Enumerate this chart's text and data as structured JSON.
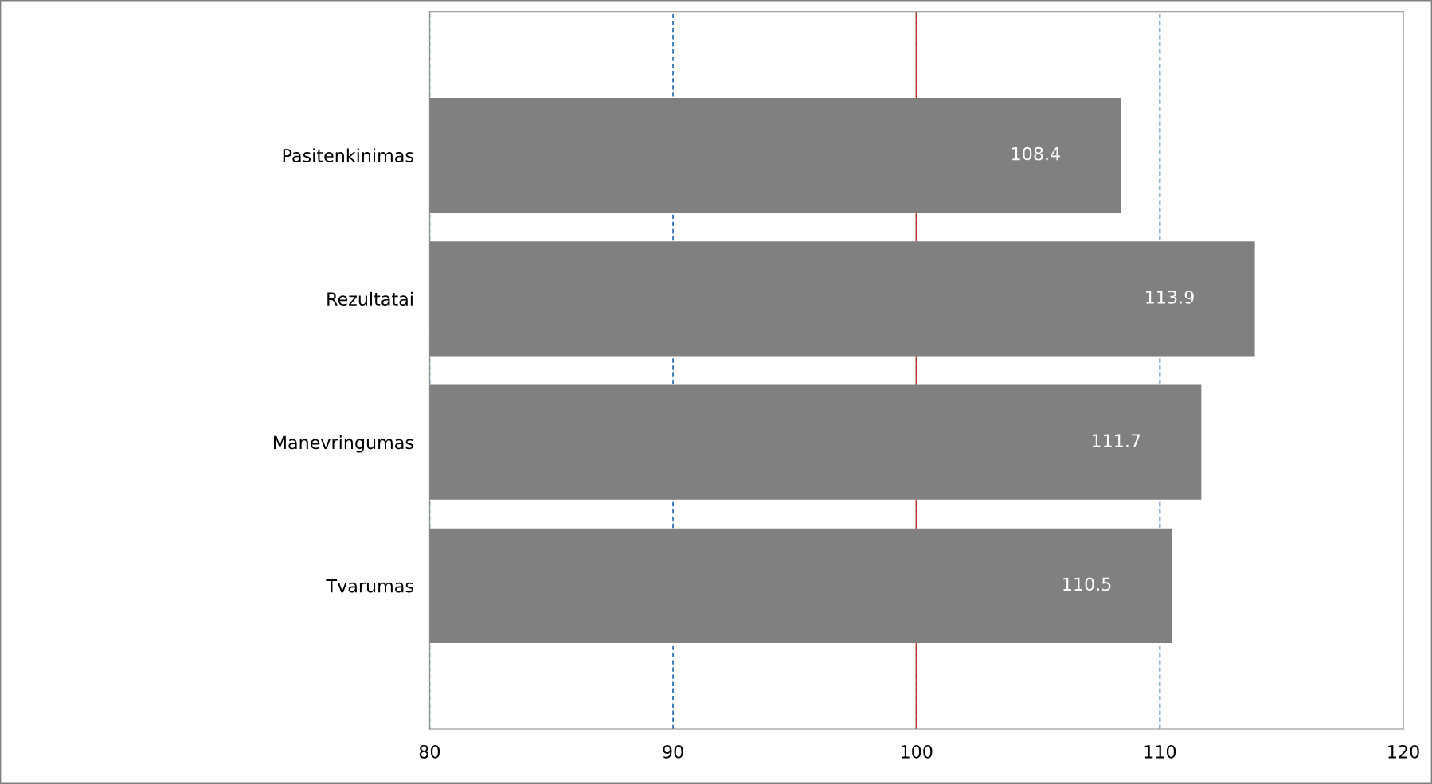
{
  "chart_data": {
    "type": "bar",
    "orientation": "horizontal",
    "categories": [
      "Pasitenkinimas",
      "Rezultatai",
      "Manevringumas",
      "Tvarumas"
    ],
    "values": [
      108.4,
      113.9,
      111.7,
      110.5
    ],
    "color": "#808080",
    "xlim": [
      80,
      120
    ],
    "xticks": [
      80,
      90,
      100,
      110,
      120
    ],
    "grid": "x",
    "data_labels": true,
    "ref_lines": [
      {
        "axis": "x",
        "value": 100,
        "label": null,
        "color": "#c0392b",
        "line_style": "solid"
      }
    ]
  }
}
